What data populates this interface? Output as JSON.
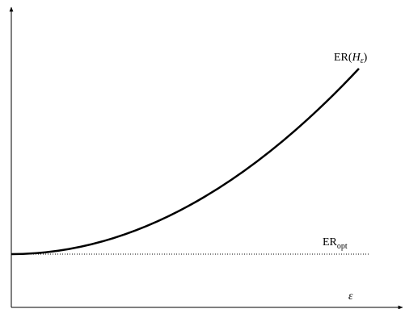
{
  "curve_label": [
    "ER(",
    "H",
    "ε",
    ")"
  ],
  "baseline_label": [
    "ER",
    "opt"
  ],
  "x_axis_label": "ε"
}
